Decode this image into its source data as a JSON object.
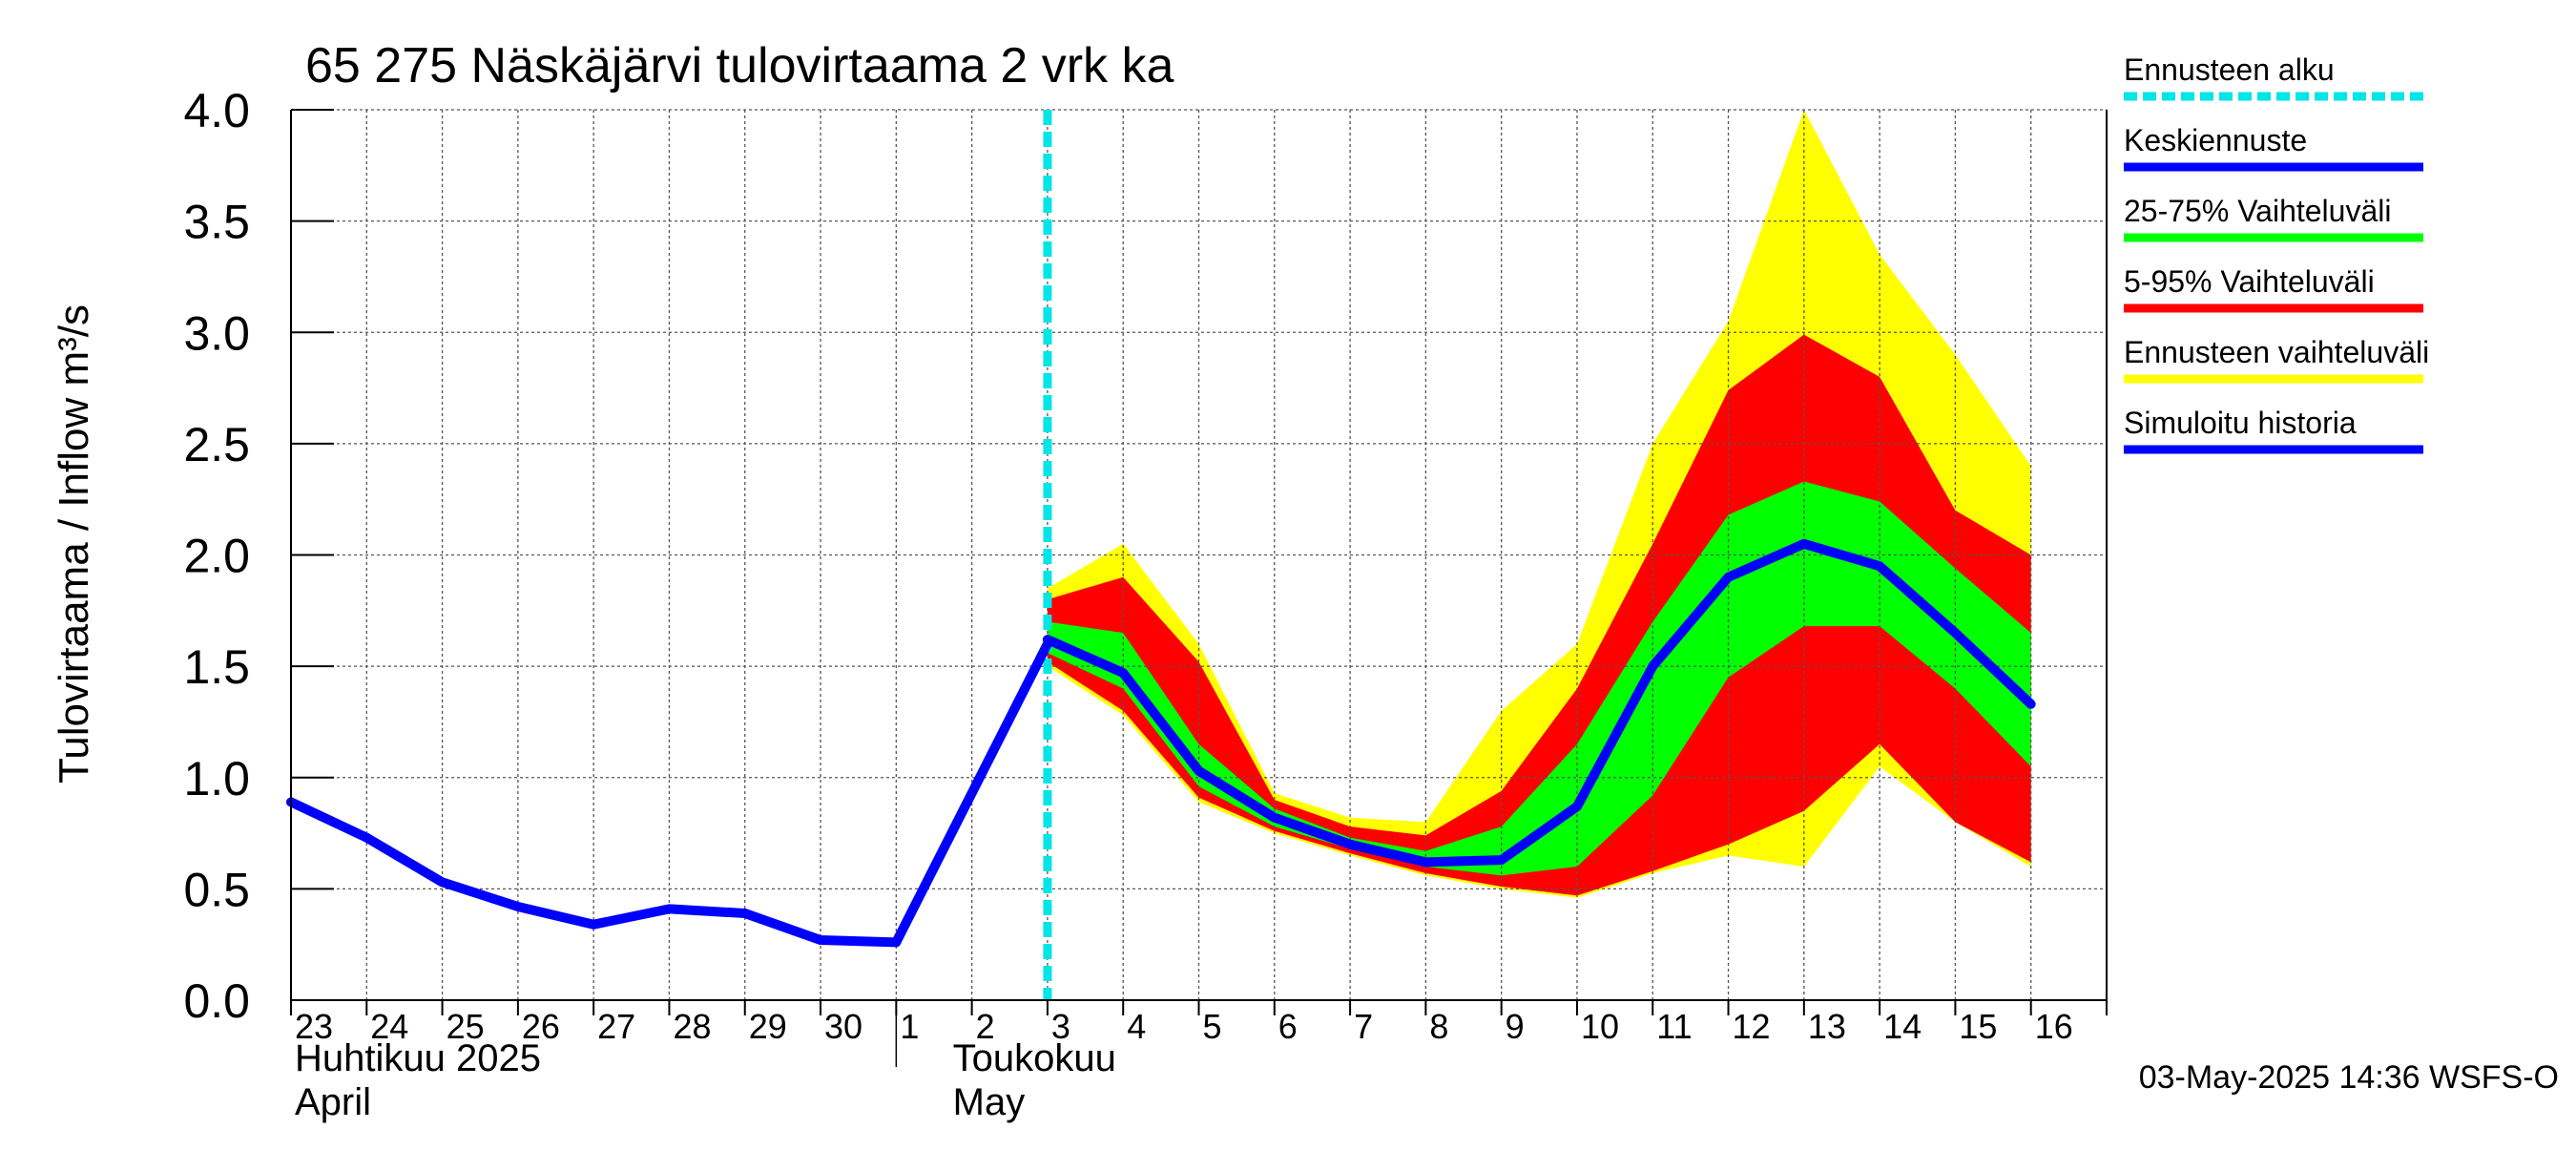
{
  "chart_data": {
    "type": "area",
    "title": "65 275 Näskäjärvi tulovirtaama 2 vrk ka",
    "ylabel": "Tulovirtaama / Inflow    m³/s",
    "ylim": [
      0,
      4
    ],
    "yticks": [
      "0.0",
      "0.5",
      "1.0",
      "1.5",
      "2.0",
      "2.5",
      "3.0",
      "3.5",
      "4.0"
    ],
    "xlim": [
      "2025-04-23",
      "2025-05-16"
    ],
    "x_tick_labels": [
      "23",
      "24",
      "25",
      "26",
      "27",
      "28",
      "29",
      "30",
      "1",
      "2",
      "3",
      "4",
      "5",
      "6",
      "7",
      "8",
      "9",
      "10",
      "11",
      "12",
      "13",
      "14",
      "15",
      "16"
    ],
    "month_labels": [
      {
        "fi": "Huhtikuu  2025",
        "en": "April"
      },
      {
        "fi": "Toukokuu",
        "en": "May"
      }
    ],
    "grid": true,
    "forecast_start": "2025-05-03",
    "history": {
      "name": "Simuloitu historia",
      "color": "#0000ff",
      "x": [
        "2025-04-23",
        "2025-04-24",
        "2025-04-25",
        "2025-04-26",
        "2025-04-27",
        "2025-04-28",
        "2025-04-29",
        "2025-04-30",
        "2025-05-01",
        "2025-05-02",
        "2025-05-03"
      ],
      "values": [
        0.89,
        0.73,
        0.53,
        0.42,
        0.34,
        0.41,
        0.39,
        0.27,
        0.26,
        0.93,
        1.6
      ]
    },
    "forecast_dates": [
      "2025-05-03",
      "2025-05-04",
      "2025-05-05",
      "2025-05-06",
      "2025-05-07",
      "2025-05-08",
      "2025-05-09",
      "2025-05-10",
      "2025-05-11",
      "2025-05-12",
      "2025-05-13",
      "2025-05-14",
      "2025-05-15",
      "2025-05-16"
    ],
    "median": {
      "name": "Keskiennuste",
      "color": "#0000ff",
      "values": [
        1.62,
        1.47,
        1.03,
        0.82,
        0.7,
        0.62,
        0.63,
        0.87,
        1.5,
        1.9,
        2.05,
        1.95,
        1.65,
        1.33
      ]
    },
    "band_25_75": {
      "name": "25-75% Vaihteluväli",
      "color": "#00ff00",
      "lower": [
        1.56,
        1.4,
        0.96,
        0.78,
        0.68,
        0.6,
        0.56,
        0.6,
        0.92,
        1.45,
        1.68,
        1.68,
        1.4,
        1.05
      ],
      "upper": [
        1.7,
        1.65,
        1.15,
        0.86,
        0.73,
        0.67,
        0.78,
        1.15,
        1.7,
        2.18,
        2.33,
        2.24,
        1.94,
        1.65
      ]
    },
    "band_5_95": {
      "name": "5-95% Vaihteluväli",
      "color": "#ff0000",
      "lower": [
        1.52,
        1.3,
        0.91,
        0.76,
        0.66,
        0.57,
        0.51,
        0.47,
        0.58,
        0.7,
        0.85,
        1.15,
        0.8,
        0.62
      ],
      "upper": [
        1.8,
        1.9,
        1.52,
        0.9,
        0.78,
        0.74,
        0.94,
        1.4,
        2.05,
        2.74,
        2.99,
        2.8,
        2.2,
        2.0
      ]
    },
    "band_full": {
      "name": "Ennusteen vaihteluväli",
      "color": "#ffff00",
      "lower": [
        1.5,
        1.28,
        0.89,
        0.75,
        0.65,
        0.56,
        0.5,
        0.46,
        0.57,
        0.65,
        0.6,
        1.05,
        0.8,
        0.6
      ],
      "upper": [
        1.85,
        2.05,
        1.6,
        0.93,
        0.82,
        0.8,
        1.3,
        1.6,
        2.5,
        3.05,
        4.0,
        3.35,
        2.9,
        2.4
      ]
    },
    "forecast_start_line": {
      "name": "Ennusteen alku",
      "color": "#00e5e5"
    },
    "legend_position": "right",
    "footer": "03-May-2025 14:36 WSFS-O"
  }
}
